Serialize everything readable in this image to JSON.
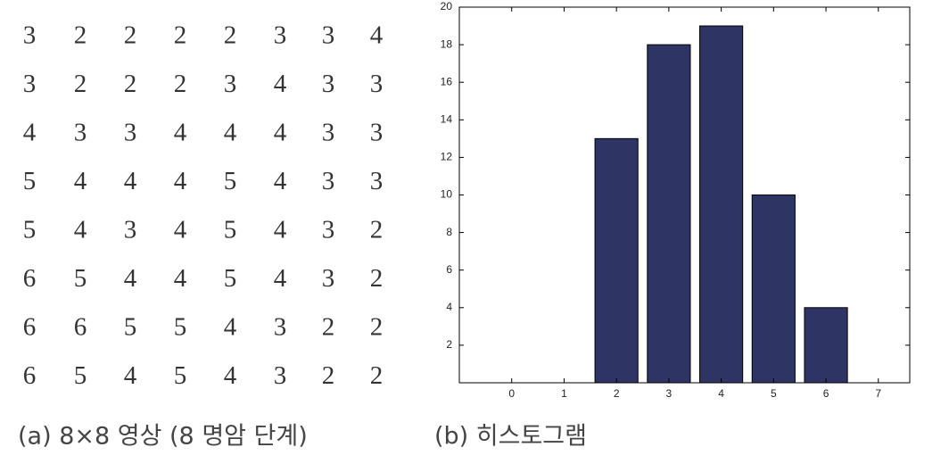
{
  "matrix": {
    "rows": [
      [
        3,
        2,
        2,
        2,
        2,
        3,
        3,
        4
      ],
      [
        3,
        2,
        2,
        2,
        3,
        4,
        3,
        3
      ],
      [
        4,
        3,
        3,
        4,
        4,
        4,
        3,
        3
      ],
      [
        5,
        4,
        4,
        4,
        5,
        4,
        3,
        3
      ],
      [
        5,
        4,
        3,
        4,
        5,
        4,
        3,
        2
      ],
      [
        6,
        5,
        4,
        4,
        5,
        4,
        3,
        2
      ],
      [
        6,
        6,
        5,
        5,
        4,
        3,
        2,
        2
      ],
      [
        6,
        5,
        4,
        5,
        4,
        3,
        2,
        2
      ]
    ],
    "caption": "(a) 8×8 영상 (8 명암 단계)"
  },
  "chart_data": {
    "type": "bar",
    "caption": "(b) 히스토그램",
    "x": [
      0,
      1,
      2,
      3,
      4,
      5,
      6,
      7
    ],
    "values": [
      0,
      0,
      13,
      18,
      19,
      10,
      4,
      0
    ],
    "color": "#2e3464",
    "xlim": [
      -1,
      7.6
    ],
    "xticks": [
      0,
      1,
      2,
      3,
      4,
      5,
      6,
      7
    ],
    "ylim": [
      0,
      20
    ],
    "yticks": [
      2,
      4,
      6,
      8,
      10,
      12,
      14,
      16,
      18,
      20
    ]
  }
}
